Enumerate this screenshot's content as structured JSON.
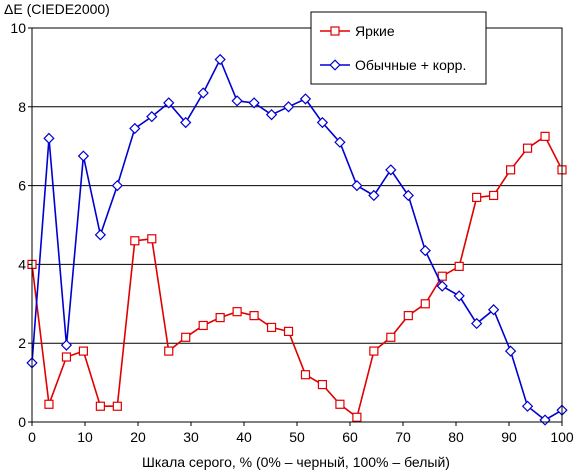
{
  "chart_data": {
    "type": "line",
    "ylabel": "ΔE (CIEDE2000)",
    "xlabel": "Шкала серого, % (0% – черный, 100% – белый)",
    "xlim": [
      0,
      100
    ],
    "ylim": [
      0,
      10
    ],
    "x_ticks": [
      0,
      10,
      20,
      30,
      40,
      50,
      60,
      70,
      80,
      90,
      100
    ],
    "y_ticks": [
      0,
      2,
      4,
      6,
      8,
      10
    ],
    "grid": "horizontal",
    "legend_position": "top-right",
    "series": [
      {
        "name": "Яркие",
        "color": "#e00000",
        "marker": "square",
        "x": [
          0,
          3.2,
          6.5,
          9.7,
          12.9,
          16.1,
          19.4,
          22.6,
          25.8,
          29.0,
          32.3,
          35.5,
          38.7,
          41.9,
          45.2,
          48.4,
          51.6,
          54.8,
          58.1,
          61.3,
          64.5,
          67.7,
          71.0,
          74.2,
          77.4,
          80.6,
          83.9,
          87.1,
          90.3,
          93.5,
          96.8,
          100
        ],
        "values": [
          4.0,
          0.45,
          1.65,
          1.8,
          0.4,
          0.4,
          4.6,
          4.65,
          1.8,
          2.15,
          2.45,
          2.65,
          2.8,
          2.7,
          2.4,
          2.3,
          1.2,
          0.95,
          0.45,
          0.12,
          1.8,
          2.15,
          2.7,
          3.0,
          3.7,
          3.95,
          5.7,
          5.75,
          6.4,
          6.95,
          7.25,
          6.4
        ]
      },
      {
        "name": "Обычные + корр.",
        "color": "#0000d0",
        "marker": "diamond",
        "x": [
          0,
          3.2,
          6.5,
          9.7,
          12.9,
          16.1,
          19.4,
          22.6,
          25.8,
          29.0,
          32.3,
          35.5,
          38.7,
          41.9,
          45.2,
          48.4,
          51.6,
          54.8,
          58.1,
          61.3,
          64.5,
          67.7,
          71.0,
          74.2,
          77.4,
          80.6,
          83.9,
          87.1,
          90.3,
          93.5,
          96.8,
          100
        ],
        "values": [
          1.5,
          7.2,
          1.95,
          6.75,
          4.75,
          6.0,
          7.45,
          7.75,
          8.1,
          7.6,
          8.35,
          9.2,
          8.15,
          8.1,
          7.8,
          8.0,
          8.2,
          7.6,
          7.1,
          6.0,
          5.75,
          6.4,
          5.75,
          4.35,
          3.45,
          3.2,
          2.5,
          2.85,
          1.8,
          0.4,
          0.05,
          0.3
        ]
      }
    ]
  }
}
